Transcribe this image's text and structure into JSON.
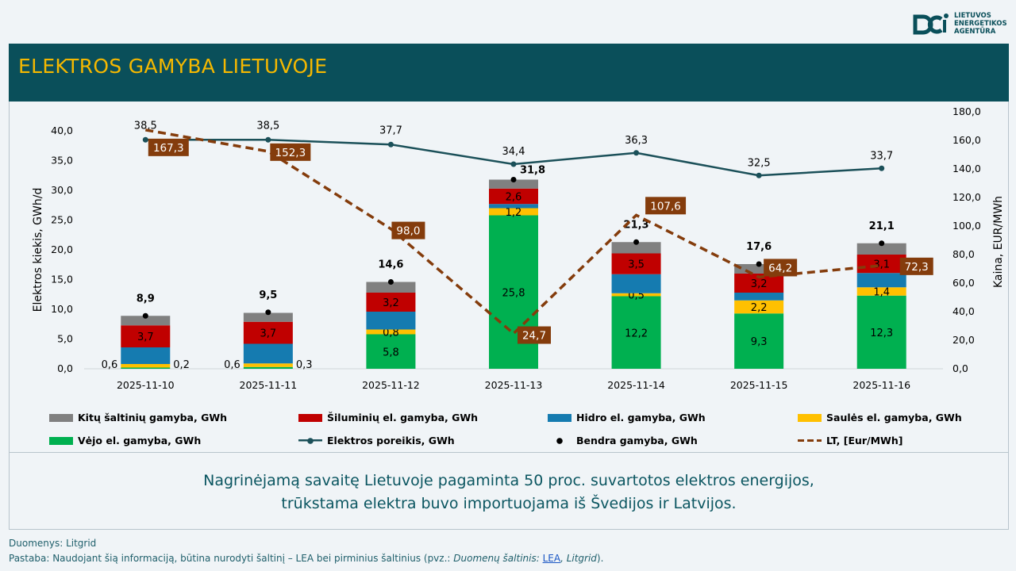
{
  "header": {
    "title": "ELEKTROS GAMYBA LIETUVOJE"
  },
  "logo": {
    "line1": "LIETUVOS",
    "line2": "ENERGETIKOS",
    "line3": "AGENTŪRA"
  },
  "chart_data": {
    "type": "bar",
    "stacked": true,
    "categories": [
      "2025-11-10",
      "2025-11-11",
      "2025-11-12",
      "2025-11-13",
      "2025-11-14",
      "2025-11-15",
      "2025-11-16"
    ],
    "ylabel": "Elektros kiekis, GWh/d",
    "y2label": "Kaina, EUR/MWh",
    "ylim": [
      0,
      40
    ],
    "y2lim": [
      0,
      180
    ],
    "yticks": [
      "0,0",
      "5,0",
      "10,0",
      "15,0",
      "20,0",
      "25,0",
      "30,0",
      "35,0",
      "40,0"
    ],
    "y2ticks": [
      "0,0",
      "20,0",
      "40,0",
      "60,0",
      "80,0",
      "100,0",
      "120,0",
      "140,0",
      "160,0",
      "180,0"
    ],
    "series": [
      {
        "name": "Vėjo el. gamyba, GWh",
        "color": "#00b050",
        "values": [
          0.2,
          0.3,
          5.8,
          25.8,
          12.2,
          9.3,
          12.3
        ],
        "labels": [
          "0,2",
          "0,3",
          "5,8",
          "25,8",
          "12,2",
          "9,3",
          "12,3"
        ]
      },
      {
        "name": "Saulės el. gamyba, GWh",
        "color": "#ffc000",
        "values": [
          0.6,
          0.6,
          0.8,
          1.2,
          0.5,
          2.2,
          1.4
        ],
        "labels": [
          "0,6",
          "0,6",
          "0,8",
          "1,2",
          "0,5",
          "2,2",
          "1,4"
        ]
      },
      {
        "name": "Hidro el. gamyba, GWh",
        "color": "#157bb0",
        "values": [
          2.8,
          3.3,
          3.0,
          0.7,
          3.2,
          1.3,
          2.4
        ]
      },
      {
        "name": "Šiluminių el. gamyba, GWh",
        "color": "#c00000",
        "values": [
          3.7,
          3.7,
          3.2,
          2.6,
          3.5,
          3.2,
          3.1
        ],
        "labels": [
          "3,7",
          "3,7",
          "3,2",
          "2,6",
          "3,5",
          "3,2",
          "3,1"
        ]
      },
      {
        "name": "Kitų šaltinių gamyba,  GWh",
        "color": "#808080",
        "values": [
          1.6,
          1.5,
          1.8,
          1.5,
          1.9,
          1.6,
          1.9
        ]
      }
    ],
    "total": {
      "name": "Bendra gamyba, GWh",
      "values": [
        8.9,
        9.5,
        14.6,
        31.8,
        21.3,
        17.6,
        21.1
      ],
      "labels": [
        "8,9",
        "9,5",
        "14,6",
        "31,8",
        "21,3",
        "17,6",
        "21,1"
      ]
    },
    "demand": {
      "name": "Elektros poreikis, GWh",
      "color": "#1b5059",
      "values": [
        38.5,
        38.5,
        37.7,
        34.4,
        36.3,
        32.5,
        33.7
      ],
      "labels": [
        "38,5",
        "38,5",
        "37,7",
        "34,4",
        "36,3",
        "32,5",
        "33,7"
      ]
    },
    "price": {
      "name": "LT, [Eur/MWh]",
      "color": "#843c0c",
      "axis": "right",
      "values": [
        167.3,
        152.3,
        98.0,
        24.7,
        107.6,
        64.2,
        72.3
      ],
      "labels": [
        "167,3",
        "152,3",
        "98,0",
        "24,7",
        "107,6",
        "64,2",
        "72,3"
      ]
    },
    "legend_order": [
      "Kitų šaltinių gamyba,  GWh",
      "Šiluminių el. gamyba, GWh",
      "Hidro el. gamyba, GWh",
      "Saulės el. gamyba, GWh",
      "Vėjo el. gamyba, GWh",
      "Elektros poreikis, GWh",
      "Bendra gamyba, GWh",
      "LT, [Eur/MWh]"
    ],
    "legend_placement": "bottom"
  },
  "message": {
    "line1": "Nagrinėjamą savaitę Lietuvoje pagaminta 50 proc. suvartotos elektros energijos,",
    "line2": "trūkstama elektra buvo importuojama iš Švedijos ir Latvijos."
  },
  "footer": {
    "source": "Duomenys: Litgrid",
    "note_prefix": "Pastaba: Naudojant šią informaciją, būtina nurodyti šaltinį – LEA bei pirminius šaltinius (pvz.: ",
    "note_italic": "Duomenų šaltinis: ",
    "note_link": "LEA",
    "note_italic2": ", Litgrid",
    "note_suffix": ")."
  }
}
